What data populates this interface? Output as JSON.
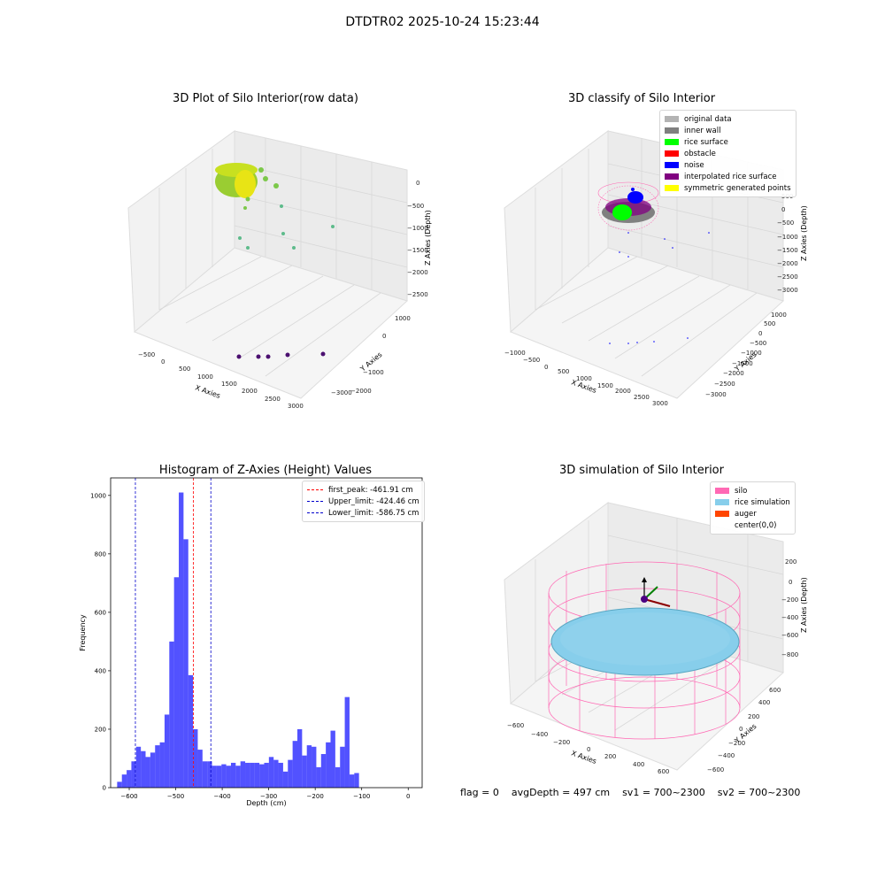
{
  "suptitle": "DTDTR02 2025-10-24 15:23:44",
  "panels": {
    "raw": {
      "title": "3D Plot of Silo Interior(row data)",
      "xlabel": "X Axies",
      "ylabel": "Y Axies",
      "zlabel": "Z Axies (Depth)",
      "xticks": [
        "−500",
        "0",
        "500",
        "1000",
        "1500",
        "2000",
        "2500",
        "3000"
      ],
      "yticks": [
        "1000",
        "0",
        "−1000",
        "−2000",
        "−3000"
      ],
      "zticks": [
        "0",
        "−500",
        "−1000",
        "−1500",
        "−2000",
        "−2500"
      ]
    },
    "classify": {
      "title": "3D classify of Silo Interior",
      "xlabel": "X Axies",
      "ylabel": "Y Axies",
      "zlabel": "Z Axies (Depth)",
      "xticks": [
        "−1000",
        "−500",
        "0",
        "500",
        "1000",
        "1500",
        "2000",
        "2500",
        "3000"
      ],
      "yticks": [
        "1000",
        "500",
        "0",
        "−500",
        "−1000",
        "−1500",
        "−2000",
        "−2500",
        "−3000"
      ],
      "zticks": [
        "500",
        "0",
        "−500",
        "−1000",
        "−1500",
        "−2000",
        "−2500",
        "−3000"
      ],
      "legend": [
        {
          "label": "original data",
          "color": "#b3b3b3"
        },
        {
          "label": "inner wall",
          "color": "#808080"
        },
        {
          "label": "rice surface",
          "color": "#00ff00"
        },
        {
          "label": "obstacle",
          "color": "#ff0000"
        },
        {
          "label": "noise",
          "color": "#0000ff"
        },
        {
          "label": "interpolated rice surface",
          "color": "#800080"
        },
        {
          "label": "symmetric generated points",
          "color": "#ffff00"
        }
      ]
    },
    "simulation": {
      "title": "3D simulation of Silo Interior",
      "xlabel": "X Axies",
      "ylabel": "Y Axies",
      "zlabel": "Z Axies (Depth)",
      "xticks": [
        "−600",
        "−400",
        "−200",
        "0",
        "200",
        "400",
        "600"
      ],
      "yticks": [
        "600",
        "400",
        "200",
        "0",
        "−200",
        "−400",
        "−600"
      ],
      "zticks": [
        "200",
        "0",
        "−200",
        "−400",
        "−600",
        "−800"
      ],
      "legend": [
        {
          "label": "silo",
          "color": "#ff69b4"
        },
        {
          "label": "rice simulation",
          "color": "#87ceeb"
        },
        {
          "label": "auger",
          "color": "#ff4500"
        },
        {
          "label": "center(0,0)",
          "color": ""
        }
      ]
    }
  },
  "footer": {
    "flag": "flag = 0",
    "avg": "avgDepth = 497 cm",
    "sv1": "sv1 = 700~2300",
    "sv2": "sv2 = 700~2300"
  },
  "colors": {
    "hist": "#0000ff",
    "peak": "#ff0000",
    "limit": "#0000cc"
  },
  "chart_data": [
    {
      "type": "histogram",
      "title": "Histogram of Z-Axies (Height) Values",
      "xlabel": "Depth (cm)",
      "ylabel": "Frequency",
      "xlim": [
        -640,
        30
      ],
      "ylim": [
        0,
        1060
      ],
      "xticks": [
        -600,
        -500,
        -400,
        -300,
        -200,
        -100,
        0
      ],
      "yticks": [
        0,
        200,
        400,
        600,
        800,
        1000
      ],
      "bin_start": -626,
      "bin_width": 10.2,
      "values": [
        20,
        45,
        60,
        90,
        140,
        125,
        105,
        120,
        145,
        155,
        250,
        500,
        720,
        1010,
        850,
        385,
        200,
        130,
        90,
        90,
        75,
        75,
        80,
        75,
        85,
        75,
        90,
        85,
        85,
        85,
        80,
        85,
        105,
        95,
        85,
        55,
        95,
        160,
        200,
        110,
        145,
        140,
        70,
        115,
        155,
        195,
        70,
        140,
        310,
        45,
        50
      ],
      "lines": [
        {
          "name": "first_peak: -461.91 cm",
          "x": -461.91,
          "color": "#ff0000"
        },
        {
          "name": "Upper_limit: -424.46 cm",
          "x": -424.46,
          "color": "#0000cc"
        },
        {
          "name": "Lower_limit: -586.75 cm",
          "x": -586.75,
          "color": "#0000cc"
        }
      ]
    },
    {
      "type": "scatter",
      "title": "3D Plot of Silo Interior(row data)",
      "note": "outlier points",
      "points": [
        {
          "x": 300,
          "y": -3000,
          "z": -2400
        },
        {
          "x": 800,
          "y": -3000,
          "z": -2400
        },
        {
          "x": 1100,
          "y": -3000,
          "z": -2400
        },
        {
          "x": 1800,
          "y": -3000,
          "z": -2400
        },
        {
          "x": 2800,
          "y": -3000,
          "z": -2400
        }
      ]
    }
  ]
}
